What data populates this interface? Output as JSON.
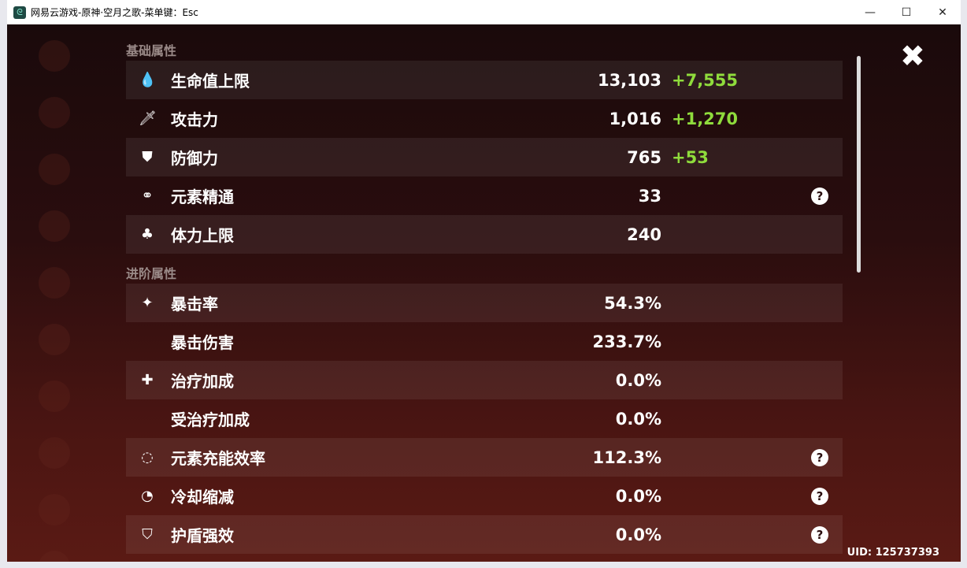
{
  "window": {
    "title": "网易云游戏-原神·空月之歌-菜单键：Esc",
    "minimize": "—",
    "maximize": "☐",
    "close": "✕"
  },
  "sections": [
    {
      "title": "基础属性",
      "rows": [
        {
          "icon": "hp-drop-icon",
          "glyph": "💧",
          "label": "生命值上限",
          "value": "13,103",
          "bonus": "+7,555"
        },
        {
          "icon": "sword-icon",
          "glyph": "🗡",
          "label": "攻击力",
          "value": "1,016",
          "bonus": "+1,270"
        },
        {
          "icon": "shield-icon",
          "glyph": "⛊",
          "label": "防御力",
          "value": "765",
          "bonus": "+53"
        },
        {
          "icon": "elemental-mastery-icon",
          "glyph": "⚭",
          "label": "元素精通",
          "value": "33",
          "help": "?"
        },
        {
          "icon": "stamina-icon",
          "glyph": "♣",
          "label": "体力上限",
          "value": "240"
        }
      ]
    },
    {
      "title": "进阶属性",
      "rows": [
        {
          "icon": "crit-star-icon",
          "glyph": "✦",
          "label": "暴击率",
          "value": "54.3%"
        },
        {
          "label": "暴击伤害",
          "value": "233.7%"
        },
        {
          "icon": "healing-cross-icon",
          "glyph": "✚",
          "label": "治疗加成",
          "value": "0.0%"
        },
        {
          "label": "受治疗加成",
          "value": "0.0%"
        },
        {
          "icon": "energy-recharge-icon",
          "glyph": "◌",
          "label": "元素充能效率",
          "value": "112.3%",
          "help": "?"
        },
        {
          "icon": "cooldown-icon",
          "glyph": "◔",
          "label": "冷却缩减",
          "value": "0.0%",
          "help": "?"
        },
        {
          "icon": "shield-strength-icon",
          "glyph": "⛉",
          "label": "护盾强效",
          "value": "0.0%",
          "help": "?"
        }
      ]
    }
  ],
  "close_glyph": "✖",
  "uid": "UID: 125737393",
  "colors": {
    "bonus": "#8fdc3c",
    "background": "#2a0d0e"
  }
}
